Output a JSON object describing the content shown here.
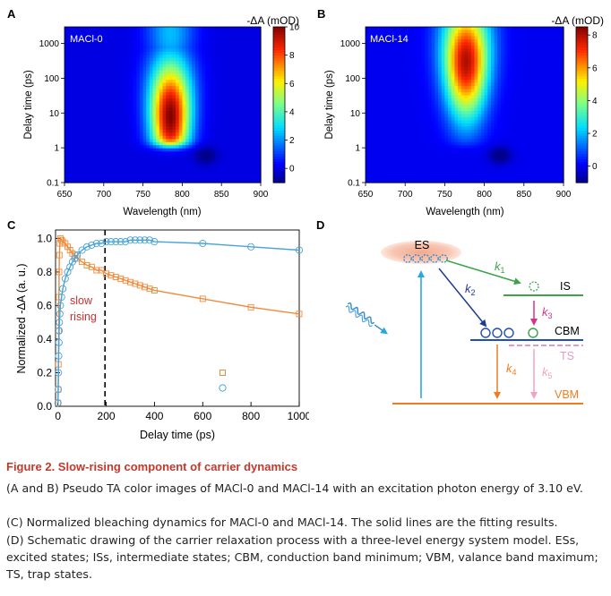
{
  "panels": {
    "A": {
      "letter": "A",
      "sample": "MACl-0",
      "cbar_title": "-ΔA (mOD)",
      "cbar_ticks": [
        "10",
        "8",
        "6",
        "4",
        "2",
        "0"
      ],
      "vmin": -1,
      "vmax": 10,
      "xlabel": "Wavelength (nm)",
      "ylabel": "Delay time (ps)",
      "xticks": [
        "650",
        "700",
        "750",
        "800",
        "850",
        "900"
      ],
      "yticks": [
        "0.1",
        "1",
        "10",
        "100",
        "1000"
      ]
    },
    "B": {
      "letter": "B",
      "sample": "MACl-14",
      "cbar_title": "-ΔA (mOD)",
      "cbar_ticks": [
        "8",
        "6",
        "4",
        "2",
        "0"
      ],
      "vmin": -1,
      "vmax": 8.5,
      "xlabel": "Wavelength (nm)",
      "ylabel": "Delay time (ps)",
      "xticks": [
        "650",
        "700",
        "750",
        "800",
        "850",
        "900"
      ],
      "yticks": [
        "0.1",
        "1",
        "10",
        "100",
        "1000"
      ]
    },
    "C": {
      "letter": "C",
      "xlabel": "Delay time (ps)",
      "ylabel": "Normalized -ΔA (a. u.)",
      "xticks": [
        "0",
        "200",
        "400",
        "600",
        "800",
        "1000"
      ],
      "yticks": [
        "0.0",
        "0.2",
        "0.4",
        "0.6",
        "0.8",
        "1.0"
      ],
      "annotation_line1": "slow",
      "annotation_line2": "rising"
    },
    "D": {
      "letter": "D",
      "labels": {
        "es": "ES",
        "is": "IS",
        "cbm": "CBM",
        "ts": "TS",
        "vbm": "VBM"
      },
      "rates": [
        "k1",
        "k2",
        "k3",
        "k4",
        "k5"
      ]
    }
  },
  "chart_data": [
    {
      "type": "heatmap",
      "panel": "A",
      "title": "MACl-0",
      "xlabel": "Wavelength (nm)",
      "ylabel": "Delay time (ps)",
      "xlim": [
        650,
        900
      ],
      "ylim": [
        0.1,
        3000
      ],
      "y_scale": "log",
      "colorbar_label": "-ΔA (mOD)",
      "colorbar_range": [
        -1,
        10
      ],
      "peak": {
        "wavelength_nm": 785,
        "delay_ps": 8,
        "value_mOD": 10
      },
      "signal_extent_delay_ps": [
        1,
        3000
      ],
      "negative_feature": {
        "wavelength_nm": 830,
        "delay_ps": 0.6
      }
    },
    {
      "type": "heatmap",
      "panel": "B",
      "title": "MACl-14",
      "xlabel": "Wavelength (nm)",
      "ylabel": "Delay time (ps)",
      "xlim": [
        650,
        900
      ],
      "ylim": [
        0.1,
        3000
      ],
      "y_scale": "log",
      "colorbar_label": "-ΔA (mOD)",
      "colorbar_range": [
        -1,
        8.5
      ],
      "peak": {
        "wavelength_nm": 777,
        "delay_ps": 300,
        "value_mOD": 8
      },
      "signal_extent_delay_ps": [
        1,
        3000
      ],
      "negative_feature": {
        "wavelength_nm": 820,
        "delay_ps": 0.6
      }
    },
    {
      "type": "scatter",
      "panel": "C",
      "xlabel": "Delay time (ps)",
      "ylabel": "Normalized -ΔA (a. u.)",
      "xlim": [
        -10,
        1000
      ],
      "ylim": [
        0,
        1.05
      ],
      "dashed_line_x": 195,
      "series": [
        {
          "name": "MACl-0",
          "marker": "open square",
          "color": "#f08a3a",
          "x": [
            0,
            1,
            2,
            3,
            4,
            5,
            6,
            8,
            10,
            15,
            20,
            30,
            40,
            50,
            60,
            70,
            80,
            100,
            120,
            140,
            160,
            180,
            200,
            220,
            240,
            260,
            280,
            300,
            320,
            340,
            360,
            380,
            400,
            600,
            800,
            1000
          ],
          "y": [
            0.02,
            0.1,
            0.25,
            0.45,
            0.65,
            0.8,
            0.9,
            0.97,
            1.0,
            0.99,
            0.98,
            0.97,
            0.95,
            0.93,
            0.91,
            0.9,
            0.88,
            0.86,
            0.84,
            0.83,
            0.81,
            0.81,
            0.79,
            0.78,
            0.77,
            0.76,
            0.75,
            0.74,
            0.73,
            0.72,
            0.71,
            0.7,
            0.69,
            0.64,
            0.59,
            0.55
          ]
        },
        {
          "name": "MACl-14",
          "marker": "open circle",
          "color": "#4aa3d8",
          "x": [
            0,
            1,
            2,
            3,
            4,
            5,
            6,
            8,
            10,
            15,
            20,
            30,
            40,
            50,
            60,
            70,
            80,
            100,
            120,
            140,
            160,
            180,
            200,
            220,
            240,
            260,
            280,
            300,
            320,
            340,
            360,
            380,
            400,
            600,
            800,
            1000
          ],
          "y": [
            0.02,
            0.1,
            0.2,
            0.3,
            0.38,
            0.45,
            0.5,
            0.55,
            0.6,
            0.65,
            0.7,
            0.76,
            0.8,
            0.83,
            0.86,
            0.88,
            0.9,
            0.93,
            0.95,
            0.96,
            0.97,
            0.97,
            0.98,
            0.98,
            0.98,
            0.98,
            0.98,
            0.99,
            0.99,
            0.99,
            0.99,
            0.99,
            0.98,
            0.97,
            0.95,
            0.93
          ]
        }
      ]
    }
  ],
  "caption": {
    "title": "Figure 2.  Slow-rising component of carrier dynamics",
    "line_ab": "(A and B) Pseudo TA color images of MACl-0 and MACl-14 with an excitation photon energy of 3.10 eV.",
    "line_c": "(C) Normalized bleaching dynamics for MACl-0 and MACl-14. The solid lines are the fitting results.",
    "line_d": "(D) Schematic drawing of the carrier relaxation process with a three-level energy system model. ESs, excited states; ISs, intermediate states; CBM, conduction band minimum; VBM, valance band maximum; TS, trap states."
  }
}
